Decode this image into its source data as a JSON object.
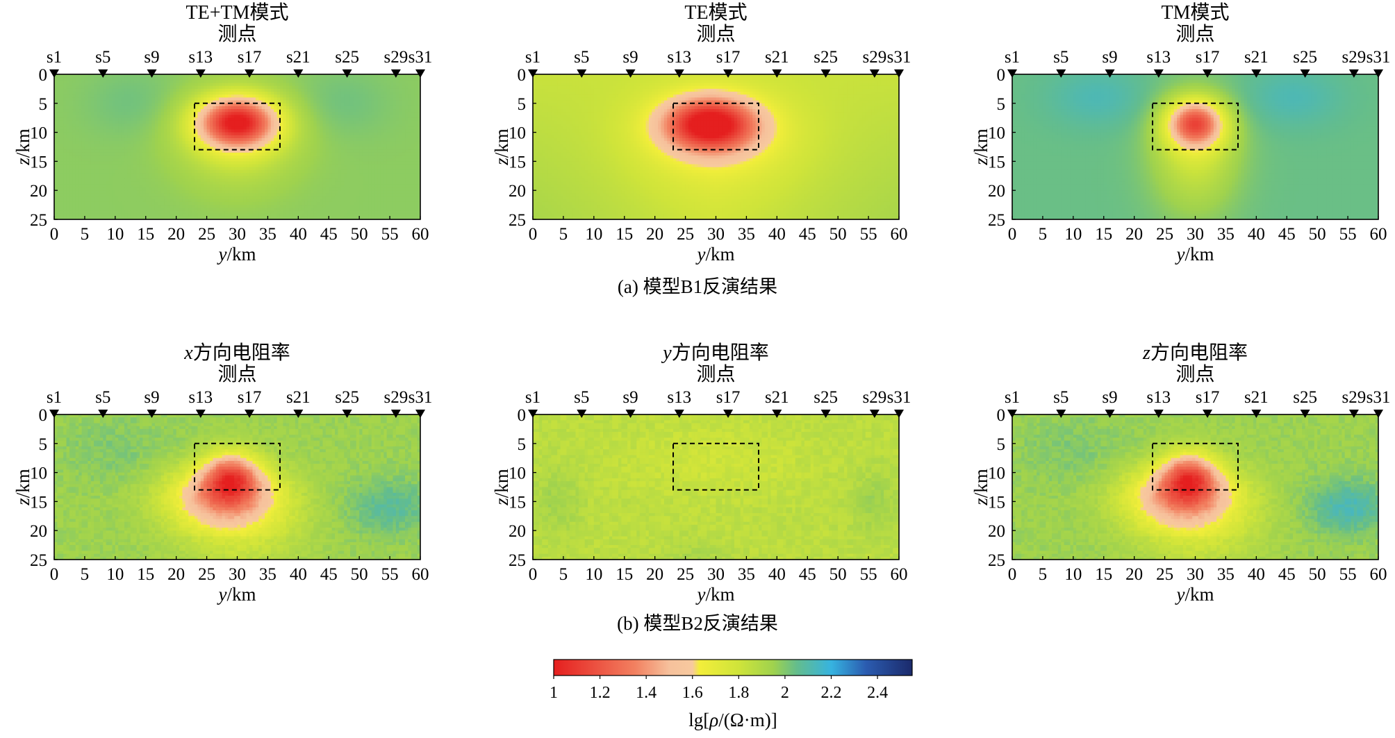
{
  "stations": [
    "s1",
    "s5",
    "s9",
    "s13",
    "s17",
    "s21",
    "s25",
    "s29",
    "s31"
  ],
  "station_axis_title": "测点",
  "x_axis_label": "y/km",
  "y_axis_label": "z/km",
  "x_ticks": [
    0,
    5,
    10,
    15,
    20,
    25,
    30,
    35,
    40,
    45,
    50,
    55,
    60
  ],
  "y_ticks": [
    0,
    5,
    10,
    15,
    20,
    25
  ],
  "rows": [
    {
      "caption": "(a) 模型B1反演结果",
      "panels": [
        {
          "title": "TE+TM模式",
          "mode": "b1_tetm"
        },
        {
          "title": "TE模式",
          "mode": "b1_te"
        },
        {
          "title": "TM模式",
          "mode": "b1_tm"
        }
      ]
    },
    {
      "caption": "(b) 模型B2反演结果",
      "panels": [
        {
          "title_italic": "x",
          "title": "方向电阻率",
          "mode": "b2_x"
        },
        {
          "title_italic": "y",
          "title": "方向电阻率",
          "mode": "b2_y"
        },
        {
          "title_italic": "z",
          "title": "方向电阻率",
          "mode": "b2_z"
        }
      ]
    }
  ],
  "colorbar": {
    "label": "lg[ρ/(Ω·m)]",
    "ticks": [
      "1",
      "1.2",
      "1.4",
      "1.6",
      "1.8",
      "2",
      "2.2",
      "2.4"
    ],
    "range": [
      1,
      2.55
    ],
    "stops": [
      {
        "v": 1.0,
        "color": "#e51f1f"
      },
      {
        "v": 1.35,
        "color": "#f28060"
      },
      {
        "v": 1.5,
        "color": "#f6c19c"
      },
      {
        "v": 1.6,
        "color": "#f7c99e"
      },
      {
        "v": 1.63,
        "color": "#f3ee3a"
      },
      {
        "v": 1.8,
        "color": "#cfe43a"
      },
      {
        "v": 1.95,
        "color": "#9fd24e"
      },
      {
        "v": 2.05,
        "color": "#64bd8c"
      },
      {
        "v": 2.2,
        "color": "#36b3e0"
      },
      {
        "v": 2.35,
        "color": "#2b5cb0"
      },
      {
        "v": 2.55,
        "color": "#1b2a6b"
      }
    ]
  },
  "chart_data": {
    "type": "heatmap",
    "description_units": "lg[ρ/(Ω·m)]",
    "x_range_km": [
      0,
      60
    ],
    "z_range_km": [
      0,
      25
    ],
    "anomaly_box_km": {
      "y": [
        23,
        37
      ],
      "z": [
        5,
        13
      ]
    },
    "color_range": [
      1,
      2.55
    ]
  }
}
